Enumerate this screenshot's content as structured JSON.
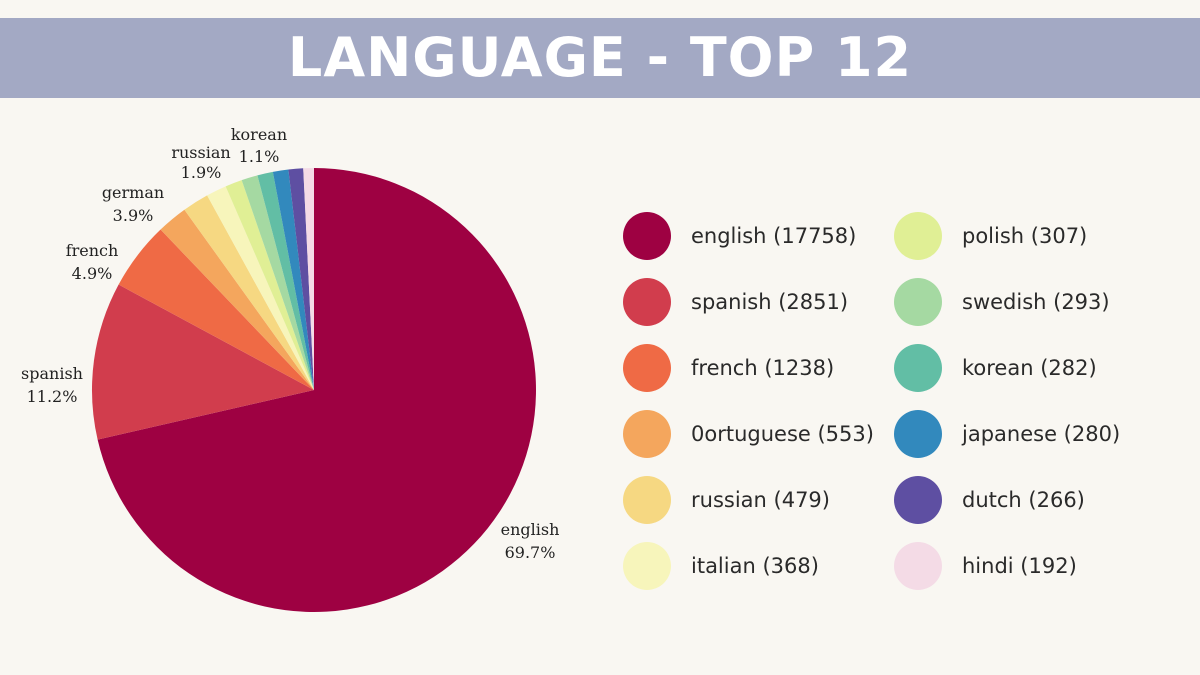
{
  "chart_data": {
    "type": "pie",
    "title": "LANGUAGE - TOP 12",
    "start_position": "top",
    "direction": "clockwise",
    "legend_placement": "right",
    "slices": [
      {
        "label": "english",
        "value": 17758,
        "color": "#9e0142",
        "legend": "english (17758)",
        "pct_label": "69.7%",
        "show_label": true
      },
      {
        "label": "spanish",
        "value": 2851,
        "color": "#d13d4d",
        "legend": "spanish (2851)",
        "pct_label": "11.2%",
        "show_label": true
      },
      {
        "label": "french",
        "value": 1238,
        "color": "#ef6a45",
        "legend": "french (1238)",
        "pct_label": "4.9%",
        "show_label": true
      },
      {
        "label": "0ortuguese",
        "value": 553,
        "color": "#f4a65d",
        "legend": "0ortuguese (553)",
        "pct_label": "",
        "show_label": false
      },
      {
        "label": "russian",
        "value": 479,
        "color": "#f6d882",
        "legend": "russian (479)",
        "pct_label": "",
        "show_label": false
      },
      {
        "label": "italian",
        "value": 368,
        "color": "#f7f5bb",
        "legend": "italian (368)",
        "pct_label": "",
        "show_label": false
      },
      {
        "label": "polish",
        "value": 307,
        "color": "#e0ef95",
        "legend": "polish (307)",
        "pct_label": "",
        "show_label": false
      },
      {
        "label": "swedish",
        "value": 293,
        "color": "#a5d9a2",
        "legend": "swedish (293)",
        "pct_label": "",
        "show_label": false
      },
      {
        "label": "korean",
        "value": 282,
        "color": "#62bea5",
        "legend": "korean (282)",
        "pct_label": "",
        "show_label": false
      },
      {
        "label": "japanese",
        "value": 280,
        "color": "#3289bd",
        "legend": "japanese (280)",
        "pct_label": "",
        "show_label": false
      },
      {
        "label": "dutch",
        "value": 266,
        "color": "#5e4fa2",
        "legend": "dutch (266)",
        "pct_label": "",
        "show_label": false
      },
      {
        "label": "hindi",
        "value": 192,
        "color": "#f4dbe6",
        "legend": "hindi (192)",
        "pct_label": "",
        "show_label": false
      }
    ],
    "outer_labels": [
      {
        "label": "english",
        "pct": "69.7%"
      },
      {
        "label": "spanish",
        "pct": "11.2%"
      },
      {
        "label": "french",
        "pct": "4.9%"
      },
      {
        "label": "german",
        "pct": "3.9%"
      },
      {
        "label": "russian",
        "pct": "1.9%"
      },
      {
        "label": "korean",
        "pct": "1.1%"
      }
    ]
  }
}
